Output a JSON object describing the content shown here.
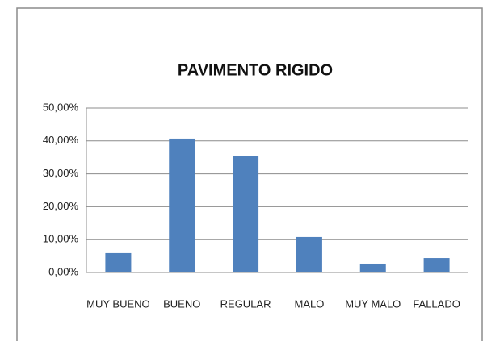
{
  "chart_data": {
    "type": "bar",
    "title": "PAVIMENTO RIGIDO",
    "categories": [
      "MUY BUENO",
      "BUENO",
      "REGULAR",
      "MALO",
      "MUY MALO",
      "FALLADO"
    ],
    "values": [
      5.9,
      40.7,
      35.5,
      10.8,
      2.7,
      4.4
    ],
    "color": "#4f81bd",
    "ylim": [
      0,
      50
    ],
    "yticks": [
      {
        "value": 0,
        "label": "0,00%"
      },
      {
        "value": 10,
        "label": "10,00%"
      },
      {
        "value": 20,
        "label": "20,00%"
      },
      {
        "value": 30,
        "label": "30,00%"
      },
      {
        "value": 40,
        "label": "40,00%"
      },
      {
        "value": 50,
        "label": "50,00%"
      }
    ],
    "grid": true
  }
}
